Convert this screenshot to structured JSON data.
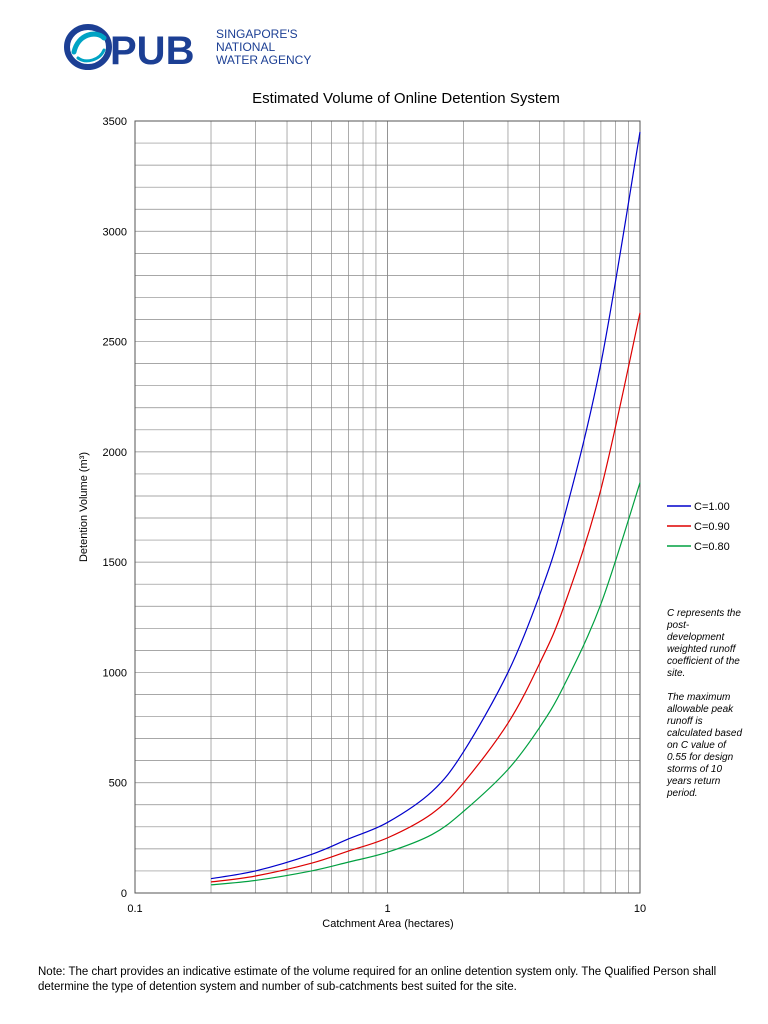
{
  "logo": {
    "brand": "PUB",
    "tagline_lines": [
      "SINGAPORE'S",
      "NATIONAL",
      "WATER AGENCY"
    ],
    "colors": {
      "blue": "#1c3f94",
      "teal": "#00a3c4"
    }
  },
  "chart_data": {
    "type": "line",
    "title": "Estimated Volume of Online Detention System",
    "xlabel": "Catchment Area (hectares)",
    "ylabel": "Detention Volume (m³)",
    "x_scale": "log",
    "xlim": [
      0.1,
      10
    ],
    "ylim": [
      0,
      3500
    ],
    "x_ticks": [
      "0.1",
      "1",
      "10"
    ],
    "y_ticks": [
      "0",
      "500",
      "1000",
      "1500",
      "2000",
      "2500",
      "3000",
      "3500"
    ],
    "grid": true,
    "legend_position": "right",
    "x": [
      0.2,
      0.3,
      0.5,
      0.7,
      1,
      1.5,
      2,
      3,
      4,
      5,
      7,
      10
    ],
    "series": [
      {
        "name": "C=1.00",
        "color": "#0000cc",
        "values": [
          65,
          100,
          175,
          245,
          320,
          460,
          640,
          1000,
          1350,
          1700,
          2400,
          3450
        ]
      },
      {
        "name": "C=0.90",
        "color": "#dd0000",
        "values": [
          50,
          77,
          135,
          190,
          250,
          360,
          500,
          770,
          1040,
          1300,
          1830,
          2630
        ]
      },
      {
        "name": "C=0.80",
        "color": "#00a040",
        "values": [
          37,
          57,
          100,
          140,
          185,
          265,
          370,
          560,
          750,
          940,
          1310,
          1860
        ]
      }
    ]
  },
  "notes": {
    "note1": "C represents the post-development weighted runoff coefficient of the site.",
    "note2": "The maximum allowable peak runoff is calculated based on C value of 0.55 for design storms of 10 years return period."
  },
  "footnote": "Note: The chart provides an indicative estimate of the volume required for an online detention system only. The Qualified Person shall determine the type of detention system and number of sub-catchments best suited for the site."
}
